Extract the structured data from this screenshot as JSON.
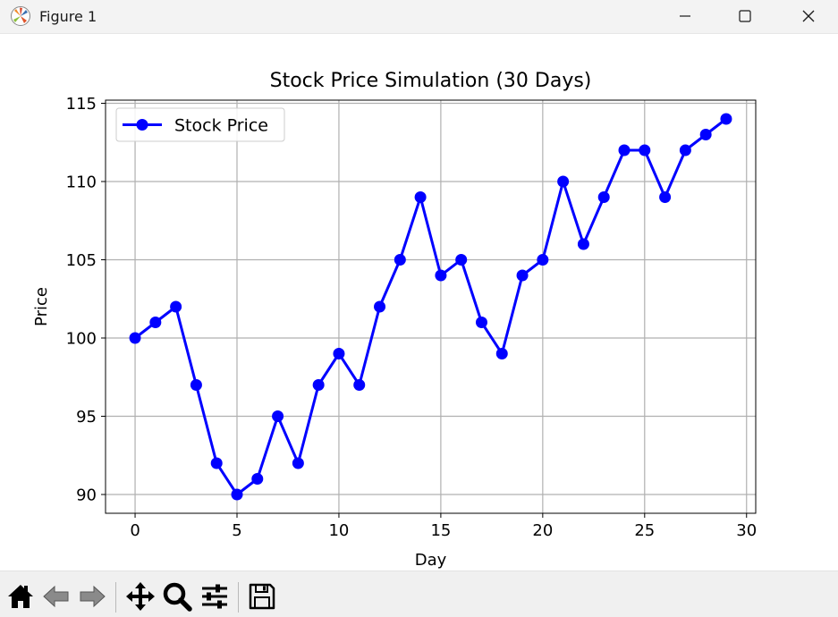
{
  "window": {
    "title": "Figure 1",
    "app_icon": "matplotlib-logo-icon",
    "controls": [
      "minimize-icon",
      "maximize-icon",
      "close-icon"
    ]
  },
  "toolbar": {
    "tools": [
      "home-icon",
      "back-arrow-icon",
      "forward-arrow-icon",
      "pan-move-icon",
      "zoom-magnifier-icon",
      "configure-subplots-icon",
      "save-floppy-icon"
    ]
  },
  "chart_data": {
    "type": "line",
    "title": "Stock Price Simulation (30 Days)",
    "xlabel": "Day",
    "ylabel": "Price",
    "xlim": [
      -1.45,
      30.45
    ],
    "ylim": [
      88.8,
      115.2
    ],
    "xticks": [
      0,
      5,
      10,
      15,
      20,
      25,
      30
    ],
    "yticks": [
      90,
      95,
      100,
      105,
      110,
      115
    ],
    "grid": true,
    "legend": "upper-left",
    "series": [
      {
        "name": "Stock Price",
        "color": "#0000ff",
        "marker": "circle",
        "x": [
          0,
          1,
          2,
          3,
          4,
          5,
          6,
          7,
          8,
          9,
          10,
          11,
          12,
          13,
          14,
          15,
          16,
          17,
          18,
          19,
          20,
          21,
          22,
          23,
          24,
          25,
          26,
          27,
          28,
          29
        ],
        "y": [
          100,
          101,
          102,
          97,
          92,
          90,
          91,
          95,
          92,
          97,
          99,
          97,
          102,
          105,
          109,
          104,
          105,
          101,
          99,
          104,
          105,
          110,
          106,
          109,
          112,
          112,
          109,
          112,
          113,
          114
        ]
      }
    ]
  }
}
